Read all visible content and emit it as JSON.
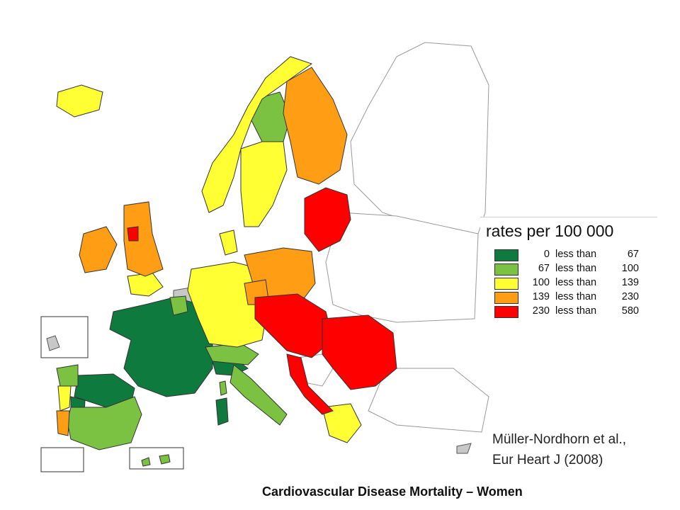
{
  "legend": {
    "title": "rates per 100 000",
    "classes": [
      {
        "low": "0",
        "connector": "less than",
        "high": "67",
        "color": "#0f7a3e"
      },
      {
        "low": "67",
        "connector": "less than",
        "high": "100",
        "color": "#7cc242"
      },
      {
        "low": "100",
        "connector": "less than",
        "high": "139",
        "color": "#ffff33"
      },
      {
        "low": "139",
        "connector": "less than",
        "high": "230",
        "color": "#ff9e14"
      },
      {
        "low": "230",
        "connector": "less than",
        "high": "580",
        "color": "#ff0000"
      }
    ]
  },
  "citation": {
    "line1": "Müller-Nordhorn et al.,",
    "line2": "Eur Heart J (2008)"
  },
  "caption": "Cardiovascular Disease Mortality – Women",
  "colors": {
    "no_data": "#ffffff",
    "grey_region": "#c8c8c8",
    "sea_border": "#2a6fb0",
    "region_border": "#555555"
  }
}
